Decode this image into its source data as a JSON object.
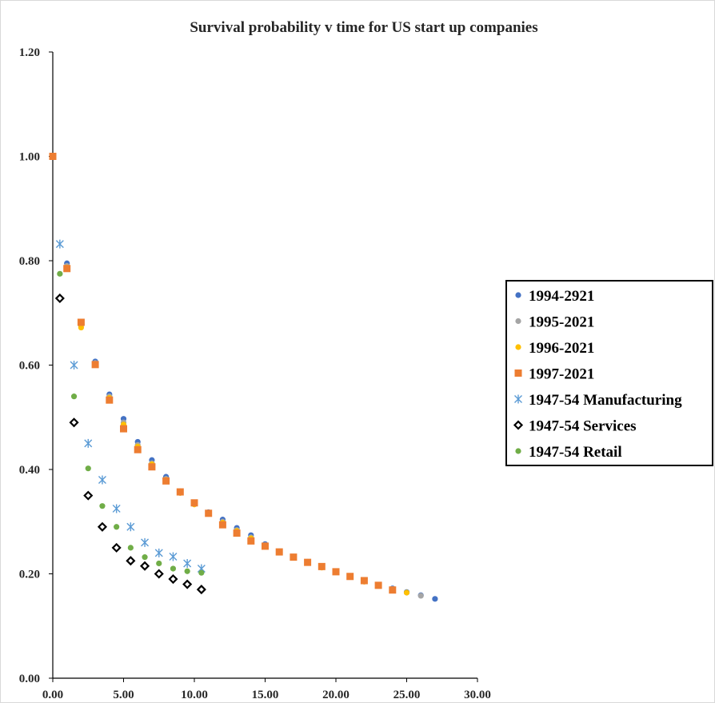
{
  "chart_data": {
    "type": "scatter",
    "title": "Survival probability v time for US start up companies",
    "xlabel": "",
    "ylabel": "",
    "xlim": [
      0,
      30
    ],
    "ylim": [
      0,
      1.2
    ],
    "x_ticks": [
      "0.00",
      "5.00",
      "10.00",
      "15.00",
      "20.00",
      "25.00",
      "30.00"
    ],
    "y_ticks": [
      "0.00",
      "0.20",
      "0.40",
      "0.60",
      "0.80",
      "1.00",
      "1.20"
    ],
    "grid": false,
    "legend_position": "right",
    "series": [
      {
        "name": "1994-2921",
        "marker": "circle",
        "color": "#4472c4",
        "points": [
          [
            1,
            0.795
          ],
          [
            2,
            0.68
          ],
          [
            3,
            0.607
          ],
          [
            4,
            0.544
          ],
          [
            5,
            0.497
          ],
          [
            6,
            0.453
          ],
          [
            7,
            0.418
          ],
          [
            8,
            0.386
          ],
          [
            9,
            0.358
          ],
          [
            10,
            0.336
          ],
          [
            11,
            0.318
          ],
          [
            12,
            0.304
          ],
          [
            13,
            0.288
          ],
          [
            14,
            0.274
          ],
          [
            15,
            0.257
          ],
          [
            16,
            0.243
          ],
          [
            17,
            0.233
          ],
          [
            18,
            0.223
          ],
          [
            19,
            0.214
          ],
          [
            20,
            0.205
          ],
          [
            21,
            0.196
          ],
          [
            22,
            0.187
          ],
          [
            23,
            0.179
          ],
          [
            24,
            0.172
          ],
          [
            25,
            0.165
          ],
          [
            26,
            0.159
          ],
          [
            27,
            0.152
          ]
        ]
      },
      {
        "name": "1995-2021",
        "marker": "circle",
        "color": "#a5a5a5",
        "points": [
          [
            1,
            0.79
          ],
          [
            2,
            0.676
          ],
          [
            3,
            0.604
          ],
          [
            4,
            0.54
          ],
          [
            5,
            0.49
          ],
          [
            6,
            0.447
          ],
          [
            7,
            0.412
          ],
          [
            8,
            0.382
          ],
          [
            9,
            0.356
          ],
          [
            10,
            0.334
          ],
          [
            11,
            0.316
          ],
          [
            12,
            0.3
          ],
          [
            13,
            0.284
          ],
          [
            14,
            0.27
          ],
          [
            15,
            0.255
          ],
          [
            16,
            0.242
          ],
          [
            17,
            0.232
          ],
          [
            18,
            0.222
          ],
          [
            19,
            0.213
          ],
          [
            20,
            0.204
          ],
          [
            21,
            0.195
          ],
          [
            22,
            0.186
          ],
          [
            23,
            0.178
          ],
          [
            24,
            0.171
          ],
          [
            25,
            0.164
          ],
          [
            26,
            0.158
          ]
        ]
      },
      {
        "name": "1996-2021",
        "marker": "circle",
        "color": "#ffc000",
        "points": [
          [
            1,
            0.787
          ],
          [
            2,
            0.672
          ],
          [
            3,
            0.602
          ],
          [
            4,
            0.537
          ],
          [
            5,
            0.486
          ],
          [
            6,
            0.444
          ],
          [
            7,
            0.41
          ],
          [
            8,
            0.38
          ],
          [
            9,
            0.355
          ],
          [
            10,
            0.333
          ],
          [
            11,
            0.315
          ],
          [
            12,
            0.298
          ],
          [
            13,
            0.282
          ],
          [
            14,
            0.268
          ],
          [
            15,
            0.254
          ],
          [
            16,
            0.241
          ],
          [
            17,
            0.231
          ],
          [
            18,
            0.221
          ],
          [
            19,
            0.212
          ],
          [
            20,
            0.203
          ],
          [
            21,
            0.194
          ],
          [
            22,
            0.185
          ],
          [
            23,
            0.177
          ],
          [
            24,
            0.17
          ],
          [
            25,
            0.164
          ]
        ]
      },
      {
        "name": "1997-2021",
        "marker": "square",
        "color": "#ed7d31",
        "points": [
          [
            0,
            1.0
          ],
          [
            1,
            0.785
          ],
          [
            2,
            0.682
          ],
          [
            3,
            0.601
          ],
          [
            4,
            0.533
          ],
          [
            5,
            0.478
          ],
          [
            6,
            0.438
          ],
          [
            7,
            0.405
          ],
          [
            8,
            0.378
          ],
          [
            9,
            0.357
          ],
          [
            10,
            0.336
          ],
          [
            11,
            0.316
          ],
          [
            12,
            0.294
          ],
          [
            13,
            0.278
          ],
          [
            14,
            0.263
          ],
          [
            15,
            0.253
          ],
          [
            16,
            0.242
          ],
          [
            17,
            0.232
          ],
          [
            18,
            0.222
          ],
          [
            19,
            0.214
          ],
          [
            20,
            0.204
          ],
          [
            21,
            0.195
          ],
          [
            22,
            0.187
          ],
          [
            23,
            0.178
          ],
          [
            24,
            0.169
          ]
        ]
      },
      {
        "name": "1947-54 Manufacturing",
        "marker": "star",
        "color": "#5b9bd5",
        "points": [
          [
            0.5,
            0.832
          ],
          [
            1.5,
            0.6
          ],
          [
            2.5,
            0.45
          ],
          [
            3.5,
            0.38
          ],
          [
            4.5,
            0.325
          ],
          [
            5.5,
            0.29
          ],
          [
            6.5,
            0.26
          ],
          [
            7.5,
            0.24
          ],
          [
            8.5,
            0.233
          ],
          [
            9.5,
            0.22
          ],
          [
            10.5,
            0.21
          ]
        ]
      },
      {
        "name": "1947-54 Services",
        "marker": "diamond",
        "color": "#000000",
        "points": [
          [
            0.5,
            0.728
          ],
          [
            1.5,
            0.49
          ],
          [
            2.5,
            0.35
          ],
          [
            3.5,
            0.29
          ],
          [
            4.5,
            0.25
          ],
          [
            5.5,
            0.225
          ],
          [
            6.5,
            0.215
          ],
          [
            7.5,
            0.2
          ],
          [
            8.5,
            0.19
          ],
          [
            9.5,
            0.18
          ],
          [
            10.5,
            0.17
          ]
        ]
      },
      {
        "name": "1947-54 Retail",
        "marker": "circle",
        "color": "#70ad47",
        "points": [
          [
            0.5,
            0.775
          ],
          [
            1.5,
            0.54
          ],
          [
            2.5,
            0.402
          ],
          [
            3.5,
            0.33
          ],
          [
            4.5,
            0.29
          ],
          [
            5.5,
            0.25
          ],
          [
            6.5,
            0.232
          ],
          [
            7.5,
            0.22
          ],
          [
            8.5,
            0.21
          ],
          [
            9.5,
            0.205
          ],
          [
            10.5,
            0.202
          ]
        ]
      }
    ]
  }
}
